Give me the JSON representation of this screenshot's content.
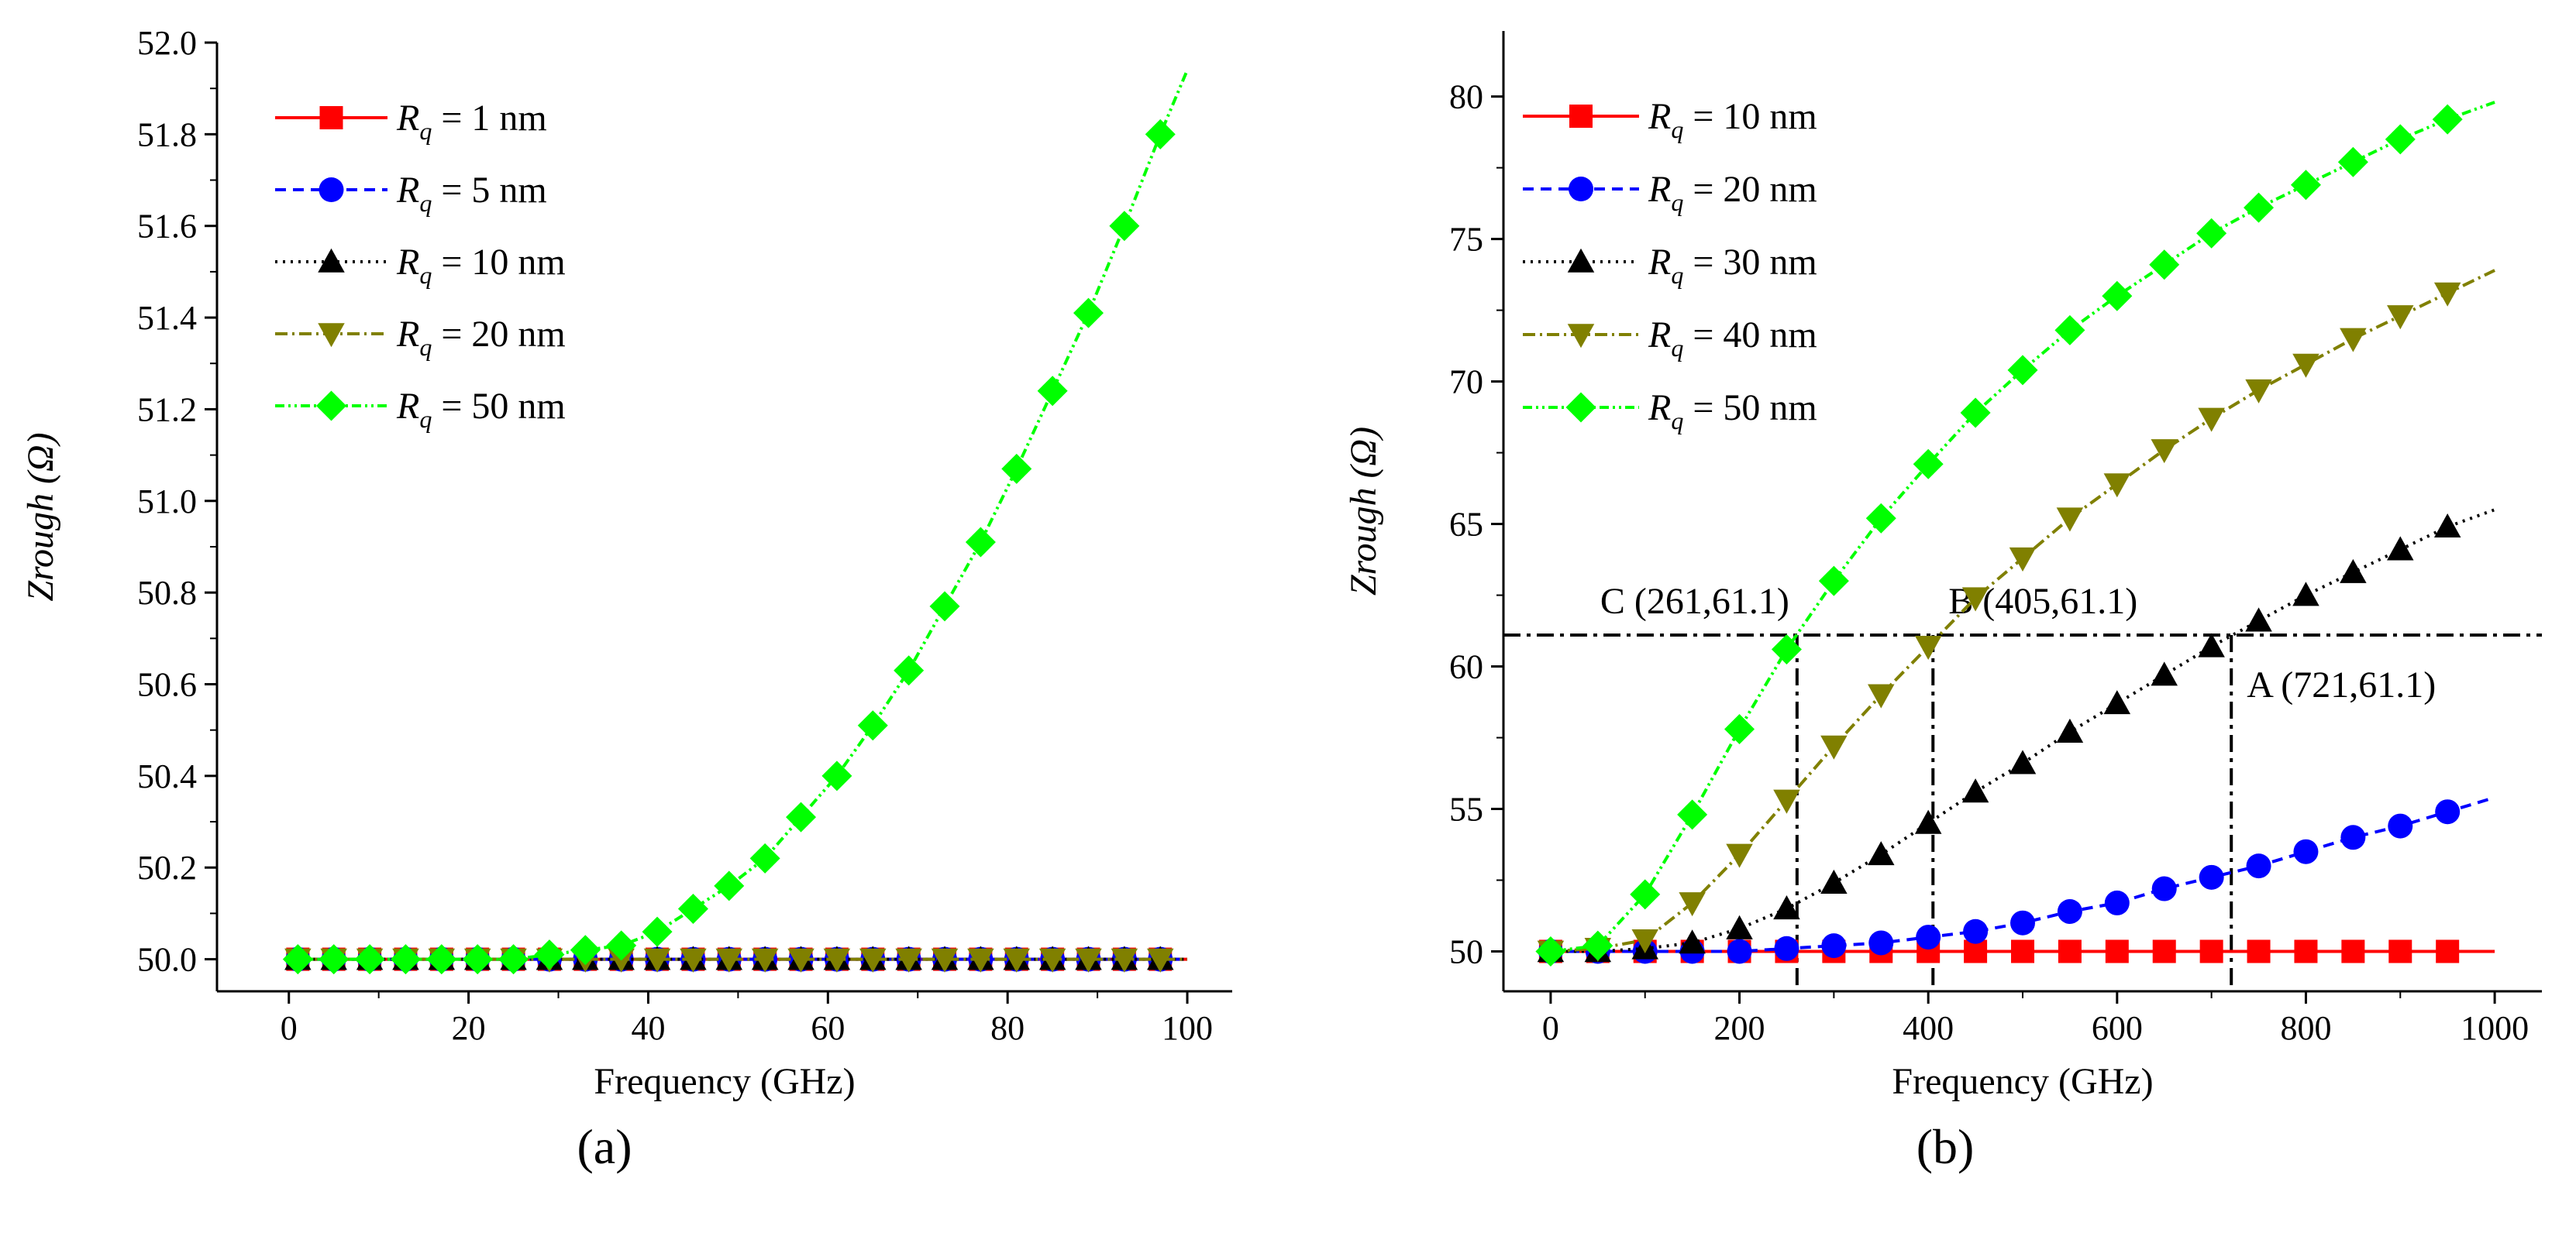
{
  "chart_data": [
    {
      "panel_label": "(a)",
      "type": "line",
      "xlabel": "Frequency (GHz)",
      "ylabel": "Zrough (Ω)",
      "xlim": [
        -8,
        105
      ],
      "ylim": [
        49.93,
        52.0
      ],
      "xticks": [
        0,
        20,
        40,
        60,
        80,
        100
      ],
      "xtick_labels": [
        "0",
        "20",
        "40",
        "60",
        "80",
        "100"
      ],
      "yticks": [
        50.0,
        50.2,
        50.4,
        50.6,
        50.8,
        51.0,
        51.2,
        51.4,
        51.6,
        51.8,
        52.0
      ],
      "ytick_labels": [
        "50.0",
        "50.2",
        "50.4",
        "50.6",
        "50.8",
        "51.0",
        "51.2",
        "51.4",
        "51.6",
        "51.8",
        "52.0"
      ],
      "legend_position": "top-left",
      "series": [
        {
          "legend_symbol": "R",
          "legend_subscript": "q",
          "legend_rest": " = 1 nm",
          "color": "#ff0000",
          "marker": "square",
          "dash": "",
          "line_to": 100,
          "x": [
            1,
            5,
            9,
            13,
            17,
            21,
            25,
            29,
            33,
            37,
            41,
            45,
            49,
            53,
            57,
            61,
            65,
            69,
            73,
            77,
            81,
            85,
            89,
            93,
            97
          ],
          "y": [
            50.0,
            50.0,
            50.0,
            50.0,
            50.0,
            50.0,
            50.0,
            50.0,
            50.0,
            50.0,
            50.0,
            50.0,
            50.0,
            50.0,
            50.0,
            50.0,
            50.0,
            50.0,
            50.0,
            50.0,
            50.0,
            50.0,
            50.0,
            50.0,
            50.0
          ]
        },
        {
          "legend_symbol": "R",
          "legend_subscript": "q",
          "legend_rest": " = 5 nm",
          "color": "#0000ff",
          "marker": "circle",
          "dash": "14,9",
          "line_to": 100,
          "x": [
            1,
            5,
            9,
            13,
            17,
            21,
            25,
            29,
            33,
            37,
            41,
            45,
            49,
            53,
            57,
            61,
            65,
            69,
            73,
            77,
            81,
            85,
            89,
            93,
            97
          ],
          "y": [
            50.0,
            50.0,
            50.0,
            50.0,
            50.0,
            50.0,
            50.0,
            50.0,
            50.0,
            50.0,
            50.0,
            50.0,
            50.0,
            50.0,
            50.0,
            50.0,
            50.0,
            50.0,
            50.0,
            50.0,
            50.0,
            50.0,
            50.0,
            50.0,
            50.0
          ]
        },
        {
          "legend_symbol": "R",
          "legend_subscript": "q",
          "legend_rest": " = 10 nm",
          "color": "#000000",
          "marker": "triangle-up",
          "dash": "3,7",
          "line_to": 100,
          "x": [
            1,
            5,
            9,
            13,
            17,
            21,
            25,
            29,
            33,
            37,
            41,
            45,
            49,
            53,
            57,
            61,
            65,
            69,
            73,
            77,
            81,
            85,
            89,
            93,
            97
          ],
          "y": [
            50.0,
            50.0,
            50.0,
            50.0,
            50.0,
            50.0,
            50.0,
            50.0,
            50.0,
            50.0,
            50.0,
            50.0,
            50.0,
            50.0,
            50.0,
            50.0,
            50.0,
            50.0,
            50.0,
            50.0,
            50.0,
            50.0,
            50.0,
            50.0,
            50.0
          ]
        },
        {
          "legend_symbol": "R",
          "legend_subscript": "q",
          "legend_rest": " = 20 nm",
          "color": "#808000",
          "marker": "triangle-down",
          "dash": "16,6,3,6",
          "line_to": 100,
          "x": [
            1,
            5,
            9,
            13,
            17,
            21,
            25,
            29,
            33,
            37,
            41,
            45,
            49,
            53,
            57,
            61,
            65,
            69,
            73,
            77,
            81,
            85,
            89,
            93,
            97
          ],
          "y": [
            50.0,
            50.0,
            50.0,
            50.0,
            50.0,
            50.0,
            50.0,
            50.0,
            50.0,
            50.0,
            50.0,
            50.0,
            50.0,
            50.0,
            50.0,
            50.0,
            50.0,
            50.0,
            50.0,
            50.0,
            50.0,
            50.0,
            50.0,
            50.0,
            50.0
          ]
        },
        {
          "legend_symbol": "R",
          "legend_subscript": "q",
          "legend_rest": " = 50 nm",
          "color": "#00ff00",
          "marker": "diamond",
          "dash": "12,5,3,5,3,5",
          "line_to": 100,
          "line_end_y": 51.94,
          "x": [
            1,
            5,
            9,
            13,
            17,
            21,
            25,
            29,
            33,
            37,
            41,
            45,
            49,
            53,
            57,
            61,
            65,
            69,
            73,
            77,
            81,
            85,
            89,
            93,
            97
          ],
          "y": [
            50.0,
            50.0,
            50.0,
            50.0,
            50.0,
            50.0,
            50.0,
            50.01,
            50.02,
            50.03,
            50.06,
            50.11,
            50.16,
            50.22,
            50.31,
            50.4,
            50.51,
            50.63,
            50.77,
            50.91,
            51.07,
            51.24,
            51.41,
            51.6,
            51.8
          ]
        }
      ]
    },
    {
      "panel_label": "(b)",
      "type": "line",
      "xlabel": "Frequency (GHz)",
      "ylabel": "Zrough (Ω)",
      "xlim": [
        -50,
        1050
      ],
      "ylim": [
        48.6,
        82.3
      ],
      "xticks": [
        0,
        200,
        400,
        600,
        800,
        1000
      ],
      "xtick_labels": [
        "0",
        "200",
        "400",
        "600",
        "800",
        "1000"
      ],
      "yticks": [
        50,
        55,
        60,
        65,
        70,
        75,
        80
      ],
      "ytick_labels": [
        "50",
        "55",
        "60",
        "65",
        "70",
        "75",
        "80"
      ],
      "legend_position": "top-left",
      "series": [
        {
          "legend_symbol": "R",
          "legend_subscript": "q",
          "legend_rest": " = 10 nm",
          "color": "#ff0000",
          "marker": "square",
          "dash": "",
          "line_to": 1000,
          "x": [
            0,
            50,
            100,
            150,
            200,
            250,
            300,
            350,
            400,
            450,
            500,
            550,
            600,
            650,
            700,
            750,
            800,
            850,
            900,
            950
          ],
          "y": [
            50.0,
            50.0,
            50.0,
            50.0,
            50.0,
            50.0,
            50.0,
            50.0,
            50.0,
            50.0,
            50.0,
            50.0,
            50.0,
            50.0,
            50.0,
            50.0,
            50.0,
            50.0,
            50.0,
            50.0
          ]
        },
        {
          "legend_symbol": "R",
          "legend_subscript": "q",
          "legend_rest": " = 20 nm",
          "color": "#0000ff",
          "marker": "circle",
          "dash": "14,9",
          "line_to": 1000,
          "line_end_y": 55.4,
          "x": [
            0,
            50,
            100,
            150,
            200,
            250,
            300,
            350,
            400,
            450,
            500,
            550,
            600,
            650,
            700,
            750,
            800,
            850,
            900,
            950
          ],
          "y": [
            50.0,
            50.0,
            50.0,
            50.0,
            50.0,
            50.1,
            50.2,
            50.3,
            50.5,
            50.7,
            51.0,
            51.4,
            51.7,
            52.2,
            52.6,
            53.0,
            53.5,
            54.0,
            54.4,
            54.9
          ]
        },
        {
          "legend_symbol": "R",
          "legend_subscript": "q",
          "legend_rest": " = 30 nm",
          "color": "#000000",
          "marker": "triangle-up",
          "dash": "3,7",
          "line_to": 1000,
          "line_end_y": 65.5,
          "x": [
            0,
            50,
            100,
            150,
            200,
            250,
            300,
            350,
            400,
            450,
            500,
            550,
            600,
            650,
            700,
            750,
            800,
            850,
            900,
            950
          ],
          "y": [
            50.0,
            50.0,
            50.1,
            50.3,
            50.8,
            51.5,
            52.4,
            53.4,
            54.5,
            55.6,
            56.6,
            57.7,
            58.7,
            59.7,
            60.7,
            61.6,
            62.5,
            63.3,
            64.1,
            64.9
          ]
        },
        {
          "legend_symbol": "R",
          "legend_subscript": "q",
          "legend_rest": " = 40 nm",
          "color": "#808000",
          "marker": "triangle-down",
          "dash": "16,6,3,6",
          "line_to": 1000,
          "line_end_y": 73.9,
          "x": [
            0,
            50,
            100,
            150,
            200,
            250,
            300,
            350,
            400,
            450,
            500,
            550,
            600,
            650,
            700,
            750,
            800,
            850,
            900,
            950
          ],
          "y": [
            50.0,
            50.1,
            50.4,
            51.7,
            53.4,
            55.3,
            57.2,
            59.0,
            60.7,
            62.4,
            63.8,
            65.2,
            66.4,
            67.6,
            68.7,
            69.7,
            70.6,
            71.5,
            72.3,
            73.1
          ]
        },
        {
          "legend_symbol": "R",
          "legend_subscript": "q",
          "legend_rest": " = 50 nm",
          "color": "#00ff00",
          "marker": "diamond",
          "dash": "12,5,3,5,3,5",
          "line_to": 1000,
          "line_end_y": 79.8,
          "x": [
            0,
            50,
            100,
            150,
            200,
            250,
            300,
            350,
            400,
            450,
            500,
            550,
            600,
            650,
            700,
            750,
            800,
            850,
            900,
            950
          ],
          "y": [
            50.0,
            50.2,
            52.0,
            54.8,
            57.8,
            60.6,
            63.0,
            65.2,
            67.1,
            68.9,
            70.4,
            71.8,
            73.0,
            74.1,
            75.2,
            76.1,
            76.9,
            77.7,
            78.5,
            79.2
          ]
        }
      ],
      "reference_line": {
        "y": 61.1
      },
      "annotations": [
        {
          "text": "C (261,61.1)",
          "x": 261,
          "y": 61.1
        },
        {
          "text": "B (405,61.1)",
          "x": 405,
          "y": 61.1
        },
        {
          "text": "A (721,61.1)",
          "x": 721,
          "y": 61.1
        }
      ]
    }
  ]
}
